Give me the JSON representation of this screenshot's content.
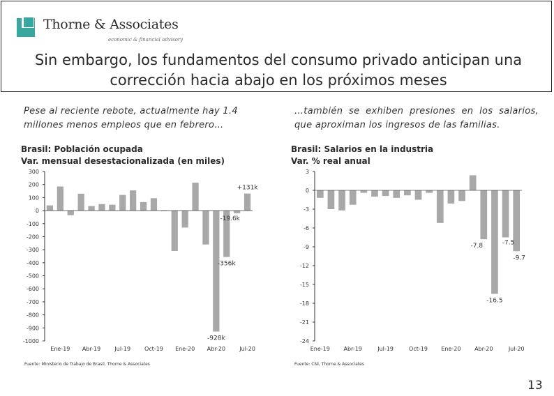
{
  "header": {
    "company": "Thorne & Associates",
    "tagline": "economic & financial advisory",
    "title_line1": "Sin embargo, los fundamentos del consumo privado anticipan una",
    "title_line2": "corrección hacia abajo en los próximos meses",
    "brand_color": "#3aa6a0"
  },
  "left_panel": {
    "note": "Pese al reciente rebote, actualmente hay 1.4 millones menos empleos que en febrero…",
    "chart_title_line1": "Brasil: Población ocupada",
    "chart_title_line2": "Var. mensual desestacionalizada (en miles)",
    "source": "Fuente: Ministerio de Trabajo de Brasil, Thorne & Associates"
  },
  "right_panel": {
    "note": "…también se exhiben presiones en los salarios, que aproximan los ingresos de las familias.",
    "chart_title_line1": "Brasil: Salarios en la industria",
    "chart_title_line2": "Var. % real anual",
    "source": "Fuente: CNI, Thorne & Associates"
  },
  "page_number": "13",
  "chart_data": [
    {
      "type": "bar",
      "title": "Brasil: Población ocupada — Var. mensual desestacionalizada (en miles)",
      "bar_color": "#a8a8a8",
      "ylim": [
        -1000,
        300
      ],
      "yticks": [
        300,
        200,
        100,
        0,
        -100,
        -200,
        -300,
        -400,
        -500,
        -600,
        -700,
        -800,
        -900,
        -1000
      ],
      "categories": [
        "Dic-18",
        "Ene-19",
        "Feb-19",
        "Mar-19",
        "Abr-19",
        "May-19",
        "Jun-19",
        "Jul-19",
        "Ago-19",
        "Sep-19",
        "Oct-19",
        "Nov-19",
        "Dic-19",
        "Ene-20",
        "Feb-20",
        "Mar-20",
        "Abr-20",
        "May-20",
        "Jun-20",
        "Jul-20"
      ],
      "values": [
        40,
        185,
        -35,
        130,
        35,
        50,
        45,
        120,
        155,
        65,
        95,
        -5,
        -310,
        -130,
        215,
        -260,
        -928,
        -356,
        -19.6,
        131
      ],
      "xtick_labels": [
        "Ene-19",
        "Abr-19",
        "Jul-19",
        "Oct-19",
        "Ene-20",
        "Abr-20",
        "Jul-20"
      ],
      "data_labels": [
        {
          "category": "Abr-20",
          "text": "-928k"
        },
        {
          "category": "May-20",
          "text": "-356k"
        },
        {
          "category": "Jun-20",
          "text": "-19.6k"
        },
        {
          "category": "Jul-20",
          "text": "+131k"
        }
      ]
    },
    {
      "type": "bar",
      "title": "Brasil: Salarios en la industria — Var. % real anual",
      "bar_color": "#a8a8a8",
      "ylim": [
        -24,
        3
      ],
      "yticks": [
        3,
        0,
        -3,
        -6,
        -9,
        -12,
        -15,
        -18,
        -21,
        -24
      ],
      "categories": [
        "Ene-19",
        "Feb-19",
        "Mar-19",
        "Abr-19",
        "May-19",
        "Jun-19",
        "Jul-19",
        "Ago-19",
        "Sep-19",
        "Oct-19",
        "Nov-19",
        "Dic-19",
        "Ene-20",
        "Feb-20",
        "Mar-20",
        "Abr-20",
        "May-20",
        "Jun-20",
        "Jul-20"
      ],
      "values": [
        -1.2,
        -3.0,
        -3.2,
        -2.3,
        -0.4,
        -1.0,
        -0.9,
        -1.2,
        -0.8,
        -1.5,
        -0.4,
        -5.2,
        -2.1,
        -1.7,
        2.4,
        -7.8,
        -16.5,
        -7.5,
        -9.7
      ],
      "xtick_labels": [
        "Ene-19",
        "Abr-19",
        "Jul-19",
        "Oct-19",
        "Ene-20",
        "Abr-20",
        "Jul-20"
      ],
      "data_labels": [
        {
          "category": "Abr-20",
          "text": "-7.8"
        },
        {
          "category": "May-20",
          "text": "-16.5"
        },
        {
          "category": "Jun-20",
          "text": "-7.5"
        },
        {
          "category": "Jul-20",
          "text": "-9.7"
        }
      ]
    }
  ]
}
